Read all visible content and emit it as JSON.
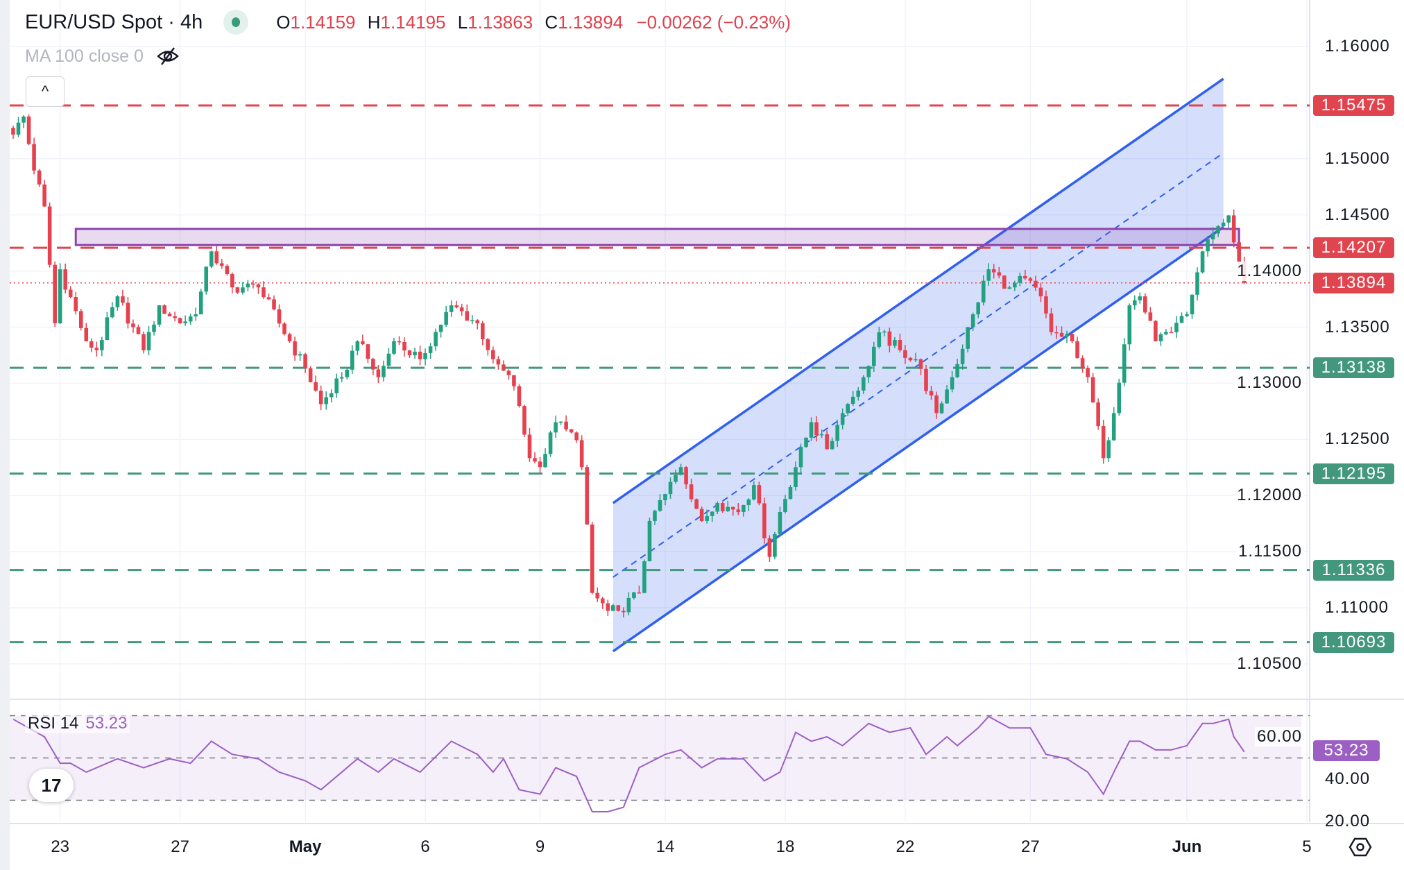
{
  "header": {
    "title": "EUR/USD Spot · 4h",
    "open_key": "O",
    "open": "1.14159",
    "high_key": "H",
    "high": "1.14195",
    "low_key": "L",
    "low": "1.13863",
    "close_key": "C",
    "close": "1.13894",
    "change": "−0.00262 (−0.23%)",
    "ma_label": "MA 100 close 0",
    "collapse_label": "^"
  },
  "colors": {
    "up": "#22a07f",
    "down": "#e5414f",
    "green_label": "#42977c",
    "red_label": "#e0454f",
    "channel": "#2f5ff0",
    "zone": "#8e44ad",
    "rsi": "#9c5fc4"
  },
  "chart_data": {
    "type": "candlestick",
    "symbol": "EUR/USD Spot",
    "interval": "4h",
    "ylim": [
      1.1025,
      1.1625
    ],
    "y_ticks": [
      "1.16000",
      "1.15000",
      "1.14500",
      "1.14000",
      "1.13500",
      "1.13000",
      "1.12500",
      "1.12000",
      "1.11500",
      "1.11000",
      "1.10500"
    ],
    "x_ticks": [
      {
        "label": "23",
        "bar": 9
      },
      {
        "label": "27",
        "bar": 32
      },
      {
        "label": "May",
        "bar": 56
      },
      {
        "label": "6",
        "bar": 79
      },
      {
        "label": "9",
        "bar": 101
      },
      {
        "label": "14",
        "bar": 125
      },
      {
        "label": "18",
        "bar": 148
      },
      {
        "label": "22",
        "bar": 171
      },
      {
        "label": "27",
        "bar": 195
      },
      {
        "label": "Jun",
        "bar": 225
      },
      {
        "label": "5",
        "bar": 248
      }
    ],
    "bar_count": 237,
    "close_path": [
      [
        0,
        1.15215
      ],
      [
        2,
        1.15376
      ],
      [
        4,
        1.14895
      ],
      [
        6,
        1.14575
      ],
      [
        8,
        1.13534
      ],
      [
        9,
        1.14015
      ],
      [
        14,
        1.13374
      ],
      [
        16,
        1.13294
      ],
      [
        20,
        1.13774
      ],
      [
        25,
        1.13294
      ],
      [
        28,
        1.13694
      ],
      [
        32,
        1.13534
      ],
      [
        35,
        1.13614
      ],
      [
        38,
        1.14175
      ],
      [
        42,
        1.13854
      ],
      [
        47,
        1.13854
      ],
      [
        53,
        1.13374
      ],
      [
        56,
        1.13134
      ],
      [
        59,
        1.12814
      ],
      [
        63,
        1.13054
      ],
      [
        66,
        1.13374
      ],
      [
        70,
        1.13054
      ],
      [
        73,
        1.13374
      ],
      [
        78,
        1.13214
      ],
      [
        84,
        1.13694
      ],
      [
        89,
        1.13534
      ],
      [
        92,
        1.13214
      ],
      [
        96,
        1.12974
      ],
      [
        99,
        1.12333
      ],
      [
        101,
        1.12253
      ],
      [
        104,
        1.12653
      ],
      [
        108,
        1.12493
      ],
      [
        109,
        1.12253
      ],
      [
        111,
        1.11132
      ],
      [
        114,
        1.10972
      ],
      [
        116,
        1.10972
      ],
      [
        120,
        1.11132
      ],
      [
        122,
        1.11773
      ],
      [
        125,
        1.12013
      ],
      [
        128,
        1.12253
      ],
      [
        132,
        1.11773
      ],
      [
        135,
        1.11933
      ],
      [
        139,
        1.11853
      ],
      [
        142,
        1.12093
      ],
      [
        145,
        1.11453
      ],
      [
        147,
        1.11853
      ],
      [
        150,
        1.12253
      ],
      [
        153,
        1.12653
      ],
      [
        156,
        1.12413
      ],
      [
        159,
        1.12734
      ],
      [
        163,
        1.13054
      ],
      [
        166,
        1.13454
      ],
      [
        170,
        1.13294
      ],
      [
        173,
        1.13214
      ],
      [
        177,
        1.12734
      ],
      [
        180,
        1.13054
      ],
      [
        184,
        1.13614
      ],
      [
        187,
        1.14015
      ],
      [
        191,
        1.13854
      ],
      [
        194,
        1.13934
      ],
      [
        197,
        1.13774
      ],
      [
        199,
        1.13454
      ],
      [
        203,
        1.13374
      ],
      [
        206,
        1.13054
      ],
      [
        209,
        1.12333
      ],
      [
        211,
        1.12734
      ],
      [
        214,
        1.13694
      ],
      [
        216,
        1.13774
      ],
      [
        219,
        1.13374
      ],
      [
        222,
        1.13454
      ],
      [
        225,
        1.13614
      ],
      [
        228,
        1.14175
      ],
      [
        230,
        1.14335
      ],
      [
        233,
        1.14495
      ],
      [
        234,
        1.14255
      ],
      [
        236,
        1.13894
      ]
    ],
    "levels": [
      {
        "label": "1.15475",
        "price": 1.15475,
        "kind": "resistance"
      },
      {
        "label": "1.14207",
        "price": 1.14207,
        "kind": "resistance"
      },
      {
        "label": "1.13894",
        "price": 1.13894,
        "kind": "last"
      },
      {
        "label": "1.13138",
        "price": 1.13138,
        "kind": "support"
      },
      {
        "label": "1.12195",
        "price": 1.12195,
        "kind": "support"
      },
      {
        "label": "1.11336",
        "price": 1.11336,
        "kind": "support"
      },
      {
        "label": "1.10693",
        "price": 1.10693,
        "kind": "support"
      }
    ],
    "zone": {
      "bar_from": 12,
      "bar_to": 235,
      "price_top": 1.14375,
      "price_bottom": 1.14231
    },
    "channel": {
      "bar_from": 115,
      "bar_to": 232,
      "upper": [
        1.11933,
        1.15712
      ],
      "lower": [
        1.10612,
        1.14391
      ]
    },
    "rsi": {
      "label": "RSI 14",
      "value": "53.23",
      "ylim": [
        15,
        75
      ],
      "ticks": [
        "60.00",
        "40.00",
        "20.00"
      ],
      "band": [
        70,
        30
      ],
      "mid": 50,
      "path": [
        [
          0,
          68.3
        ],
        [
          6,
          60
        ],
        [
          9,
          47.5
        ],
        [
          11,
          47.5
        ],
        [
          14,
          43.3
        ],
        [
          20,
          49.6
        ],
        [
          25,
          45.4
        ],
        [
          30,
          49.6
        ],
        [
          34,
          47.5
        ],
        [
          38,
          57.9
        ],
        [
          42,
          51.7
        ],
        [
          47,
          49.6
        ],
        [
          51,
          43.3
        ],
        [
          56,
          39.2
        ],
        [
          59,
          35
        ],
        [
          63,
          43.3
        ],
        [
          66,
          49.6
        ],
        [
          70,
          43.3
        ],
        [
          73,
          49.6
        ],
        [
          78,
          43.3
        ],
        [
          84,
          57.9
        ],
        [
          89,
          51.7
        ],
        [
          92,
          43.3
        ],
        [
          94,
          49.6
        ],
        [
          97,
          35
        ],
        [
          101,
          32.9
        ],
        [
          104,
          45.4
        ],
        [
          108,
          41.3
        ],
        [
          111,
          24.6
        ],
        [
          114,
          24.6
        ],
        [
          117,
          26.7
        ],
        [
          120,
          45.4
        ],
        [
          125,
          51.7
        ],
        [
          128,
          53.8
        ],
        [
          132,
          45.4
        ],
        [
          135,
          49.6
        ],
        [
          140,
          49.6
        ],
        [
          144,
          39.2
        ],
        [
          147,
          43.3
        ],
        [
          150,
          62.1
        ],
        [
          153,
          57.9
        ],
        [
          156,
          60
        ],
        [
          159,
          55.8
        ],
        [
          164,
          66.3
        ],
        [
          168,
          62.1
        ],
        [
          172,
          64.2
        ],
        [
          175,
          51.7
        ],
        [
          179,
          60
        ],
        [
          181,
          55.8
        ],
        [
          185,
          64.2
        ],
        [
          187,
          69.6
        ],
        [
          191,
          64.2
        ],
        [
          195,
          64.2
        ],
        [
          198,
          51.7
        ],
        [
          202,
          49.6
        ],
        [
          206,
          43.3
        ],
        [
          209,
          32.9
        ],
        [
          211,
          43.3
        ],
        [
          214,
          57.9
        ],
        [
          216,
          57.9
        ],
        [
          219,
          53.8
        ],
        [
          222,
          53.8
        ],
        [
          225,
          55.8
        ],
        [
          228,
          66.3
        ],
        [
          230,
          66.3
        ],
        [
          233,
          68.3
        ],
        [
          234,
          60
        ],
        [
          236,
          52.9
        ]
      ]
    }
  }
}
